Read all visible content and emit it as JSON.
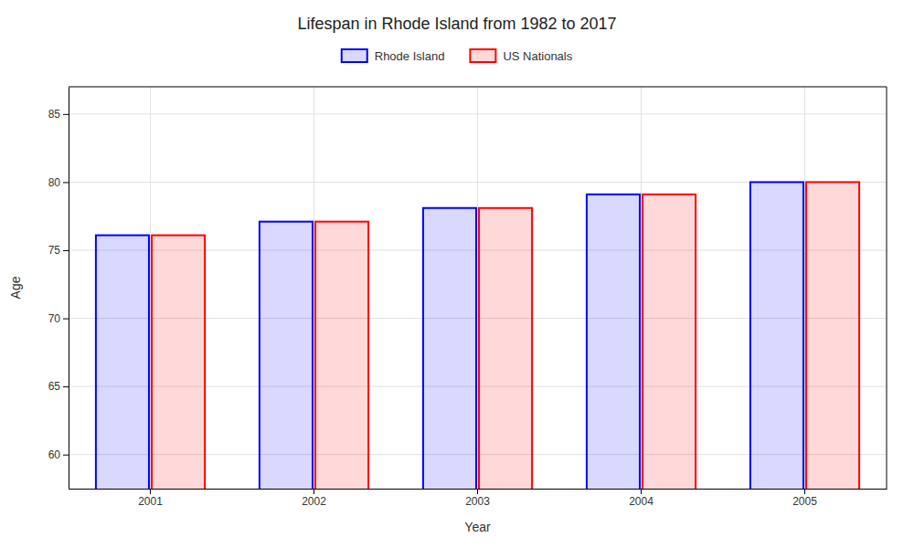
{
  "chart_data": {
    "type": "bar",
    "title": "Lifespan in Rhode Island from 1982 to 2017",
    "xlabel": "Year",
    "ylabel": "Age",
    "categories": [
      "2001",
      "2002",
      "2003",
      "2004",
      "2005"
    ],
    "series": [
      {
        "name": "Rhode Island",
        "color": "#0000ff",
        "values": [
          76.1,
          77.1,
          78.1,
          79.1,
          80.0
        ]
      },
      {
        "name": "US Nationals",
        "color": "#ff0000",
        "values": [
          76.1,
          77.1,
          78.1,
          79.1,
          80.0
        ]
      }
    ],
    "ylim": [
      57.5,
      87
    ],
    "yticks": [
      60,
      65,
      70,
      75,
      80,
      85
    ],
    "grid": true,
    "legend": "top"
  }
}
